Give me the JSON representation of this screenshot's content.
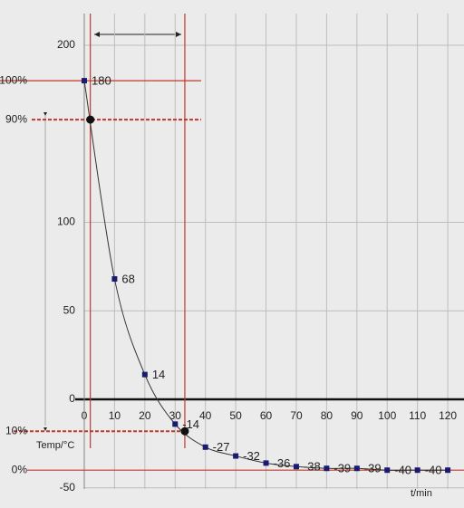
{
  "chart_data": {
    "type": "line",
    "x": [
      0,
      10,
      20,
      30,
      40,
      50,
      60,
      70,
      80,
      90,
      100,
      110,
      120
    ],
    "values": [
      180,
      68,
      14,
      -14,
      -27,
      -32,
      -36,
      -38,
      -39,
      -39,
      -40,
      -40,
      -40
    ],
    "value_labels": [
      "180",
      "68",
      "14",
      "-14",
      "-27",
      "-32",
      "-36",
      "-38",
      "-39",
      "-39",
      "-40",
      "-40",
      null
    ],
    "color": "#1a1a6e",
    "line_color": "#333333",
    "xlim": [
      -2,
      125
    ],
    "ylim": [
      -60,
      220
    ],
    "xticks": [
      0,
      10,
      20,
      30,
      40,
      50,
      60,
      70,
      80,
      90,
      100,
      110,
      120
    ],
    "yticks": [
      -50,
      0,
      50,
      100,
      200
    ],
    "grid": true,
    "y_label": "Temp/°C",
    "x_label": "t/min",
    "reference_color": "#c0392b",
    "reference_lines": [
      {
        "label": "100%",
        "value": 180,
        "dashed": false
      },
      {
        "label": "90%",
        "value": 158,
        "dashed": true
      },
      {
        "label": "10%",
        "value": -18,
        "dashed": true
      },
      {
        "label": "0%",
        "value": -40,
        "dashed": false
      }
    ],
    "vertical_lines": [
      2,
      33.2
    ],
    "crossings": [
      {
        "x": 2,
        "y": 158
      },
      {
        "x": 33.2,
        "y": -18
      }
    ]
  }
}
